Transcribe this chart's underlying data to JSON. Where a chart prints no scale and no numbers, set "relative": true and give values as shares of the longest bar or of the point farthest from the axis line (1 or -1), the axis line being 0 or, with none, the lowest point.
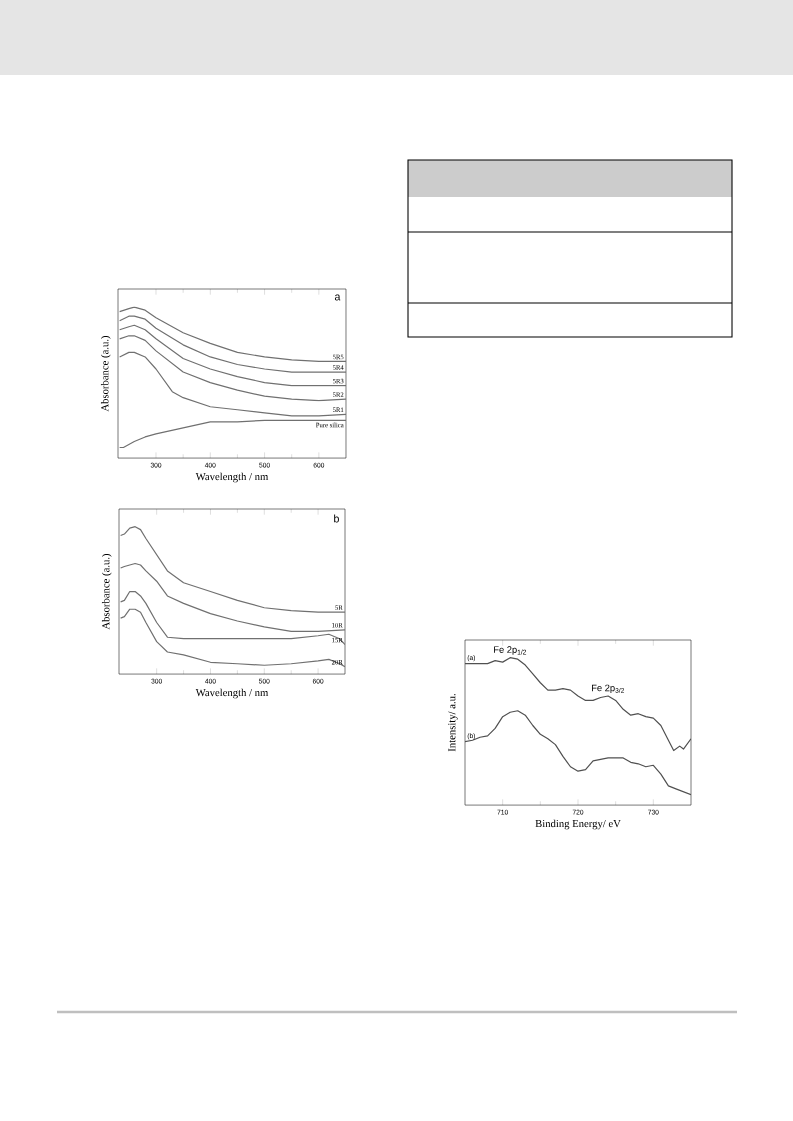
{
  "chart_data": [
    {
      "type": "line",
      "relative": true,
      "xlabel": "Wavelength / nm",
      "ylabel": "Absorbance (a.u.)",
      "annotations": [
        "a"
      ],
      "xlim": [
        230,
        650
      ],
      "xticks": [
        300,
        400,
        500,
        600
      ],
      "series": [
        {
          "name": "5R5",
          "color": "#707070",
          "x": [
            233,
            250,
            260,
            280,
            300,
            350,
            400,
            450,
            500,
            550,
            600,
            650
          ],
          "values": [
            0.97,
            0.99,
            1.0,
            0.98,
            0.93,
            0.83,
            0.76,
            0.7,
            0.67,
            0.65,
            0.64,
            0.64
          ]
        },
        {
          "name": "5R4",
          "color": "#707070",
          "x": [
            233,
            250,
            260,
            280,
            300,
            350,
            400,
            450,
            500,
            550,
            600,
            650
          ],
          "values": [
            0.91,
            0.94,
            0.94,
            0.92,
            0.86,
            0.75,
            0.67,
            0.62,
            0.59,
            0.57,
            0.57,
            0.57
          ]
        },
        {
          "name": "5R3",
          "color": "#707070",
          "x": [
            233,
            250,
            260,
            280,
            300,
            350,
            400,
            450,
            500,
            550,
            600,
            650
          ],
          "values": [
            0.85,
            0.87,
            0.88,
            0.85,
            0.79,
            0.66,
            0.59,
            0.54,
            0.5,
            0.48,
            0.48,
            0.48
          ]
        },
        {
          "name": "5R2",
          "color": "#707070",
          "x": [
            233,
            250,
            260,
            280,
            300,
            350,
            400,
            450,
            500,
            550,
            600,
            650
          ],
          "values": [
            0.79,
            0.81,
            0.81,
            0.78,
            0.71,
            0.57,
            0.5,
            0.45,
            0.41,
            0.39,
            0.38,
            0.39
          ]
        },
        {
          "name": "5R1",
          "color": "#707070",
          "x": [
            233,
            250,
            260,
            280,
            300,
            330,
            350,
            400,
            450,
            500,
            550,
            600,
            650
          ],
          "values": [
            0.67,
            0.7,
            0.7,
            0.67,
            0.59,
            0.44,
            0.4,
            0.34,
            0.32,
            0.3,
            0.28,
            0.28,
            0.29
          ]
        },
        {
          "name": "Pure silica",
          "color": "#707070",
          "x": [
            233,
            240,
            260,
            280,
            300,
            350,
            400,
            450,
            500,
            550,
            600,
            650
          ],
          "values": [
            0.07,
            0.07,
            0.11,
            0.14,
            0.16,
            0.2,
            0.24,
            0.24,
            0.25,
            0.25,
            0.25,
            0.25
          ]
        }
      ]
    },
    {
      "type": "line",
      "relative": true,
      "xlabel": "Wavelength / nm",
      "ylabel": "Absorbance (a.u.)",
      "annotations": [
        "b"
      ],
      "xlim": [
        230,
        650
      ],
      "xticks": [
        300,
        400,
        500,
        600
      ],
      "series": [
        {
          "name": "5R",
          "color": "#707070",
          "x": [
            233,
            240,
            250,
            260,
            270,
            280,
            300,
            320,
            350,
            400,
            450,
            500,
            550,
            600,
            650
          ],
          "values": [
            0.94,
            0.95,
            0.99,
            1.0,
            0.98,
            0.92,
            0.81,
            0.7,
            0.62,
            0.56,
            0.5,
            0.45,
            0.43,
            0.42,
            0.42
          ]
        },
        {
          "name": "10R",
          "color": "#707070",
          "x": [
            233,
            240,
            250,
            260,
            270,
            280,
            300,
            320,
            350,
            400,
            450,
            500,
            550,
            600,
            650
          ],
          "values": [
            0.72,
            0.73,
            0.74,
            0.75,
            0.74,
            0.7,
            0.63,
            0.53,
            0.48,
            0.41,
            0.36,
            0.32,
            0.29,
            0.29,
            0.3
          ]
        },
        {
          "name": "15R",
          "color": "#707070",
          "x": [
            233,
            240,
            250,
            260,
            270,
            280,
            300,
            320,
            350,
            400,
            450,
            500,
            550,
            600,
            620,
            640,
            650
          ],
          "values": [
            0.49,
            0.5,
            0.56,
            0.56,
            0.53,
            0.48,
            0.35,
            0.25,
            0.24,
            0.24,
            0.24,
            0.24,
            0.24,
            0.26,
            0.27,
            0.24,
            0.2
          ]
        },
        {
          "name": "20R",
          "color": "#707070",
          "x": [
            233,
            240,
            250,
            260,
            270,
            280,
            300,
            320,
            350,
            400,
            450,
            500,
            550,
            600,
            620,
            640,
            650
          ],
          "values": [
            0.38,
            0.39,
            0.44,
            0.44,
            0.42,
            0.35,
            0.22,
            0.15,
            0.13,
            0.08,
            0.07,
            0.06,
            0.07,
            0.09,
            0.1,
            0.07,
            0.05
          ]
        }
      ]
    },
    {
      "type": "line",
      "relative": true,
      "xlabel": "Binding Energy/ eV",
      "ylabel": "Intensity/ a.u.",
      "xlim": [
        705,
        735
      ],
      "xticks": [
        710,
        720,
        730
      ],
      "annotations": [
        {
          "text": "Fe 2p$_{1/2}$",
          "x": 711,
          "y": 1.0
        },
        {
          "text": "Fe 2p$_{3/2}$",
          "x": 724,
          "y": 0.74
        }
      ],
      "series": [
        {
          "name": "(a)",
          "color": "#505050",
          "x": [
            705,
            706,
            707,
            708,
            709,
            710,
            711,
            712,
            713,
            714,
            715,
            716,
            717,
            718,
            719,
            720,
            721,
            722,
            723,
            724,
            725,
            726,
            727,
            728,
            729,
            730,
            731,
            732,
            732.7,
            733.5,
            734,
            735
          ],
          "values": [
            0.96,
            0.96,
            0.96,
            0.96,
            0.98,
            0.97,
            1.0,
            0.99,
            0.95,
            0.89,
            0.83,
            0.78,
            0.78,
            0.79,
            0.78,
            0.74,
            0.71,
            0.71,
            0.73,
            0.74,
            0.71,
            0.65,
            0.61,
            0.62,
            0.6,
            0.59,
            0.54,
            0.44,
            0.37,
            0.4,
            0.38,
            0.45
          ]
        },
        {
          "name": "(b)",
          "color": "#505050",
          "x": [
            705,
            706,
            707,
            708,
            709,
            710,
            711,
            712,
            713,
            714,
            715,
            716,
            717,
            718,
            719,
            720,
            721,
            722,
            723,
            724,
            725,
            726,
            727,
            728,
            729,
            730,
            731,
            732,
            733,
            734,
            735
          ],
          "values": [
            0.43,
            0.44,
            0.46,
            0.47,
            0.52,
            0.6,
            0.63,
            0.64,
            0.61,
            0.54,
            0.48,
            0.45,
            0.41,
            0.33,
            0.26,
            0.23,
            0.24,
            0.3,
            0.31,
            0.32,
            0.32,
            0.32,
            0.29,
            0.28,
            0.26,
            0.27,
            0.21,
            0.13,
            0.11,
            0.09,
            0.07
          ]
        }
      ]
    }
  ]
}
